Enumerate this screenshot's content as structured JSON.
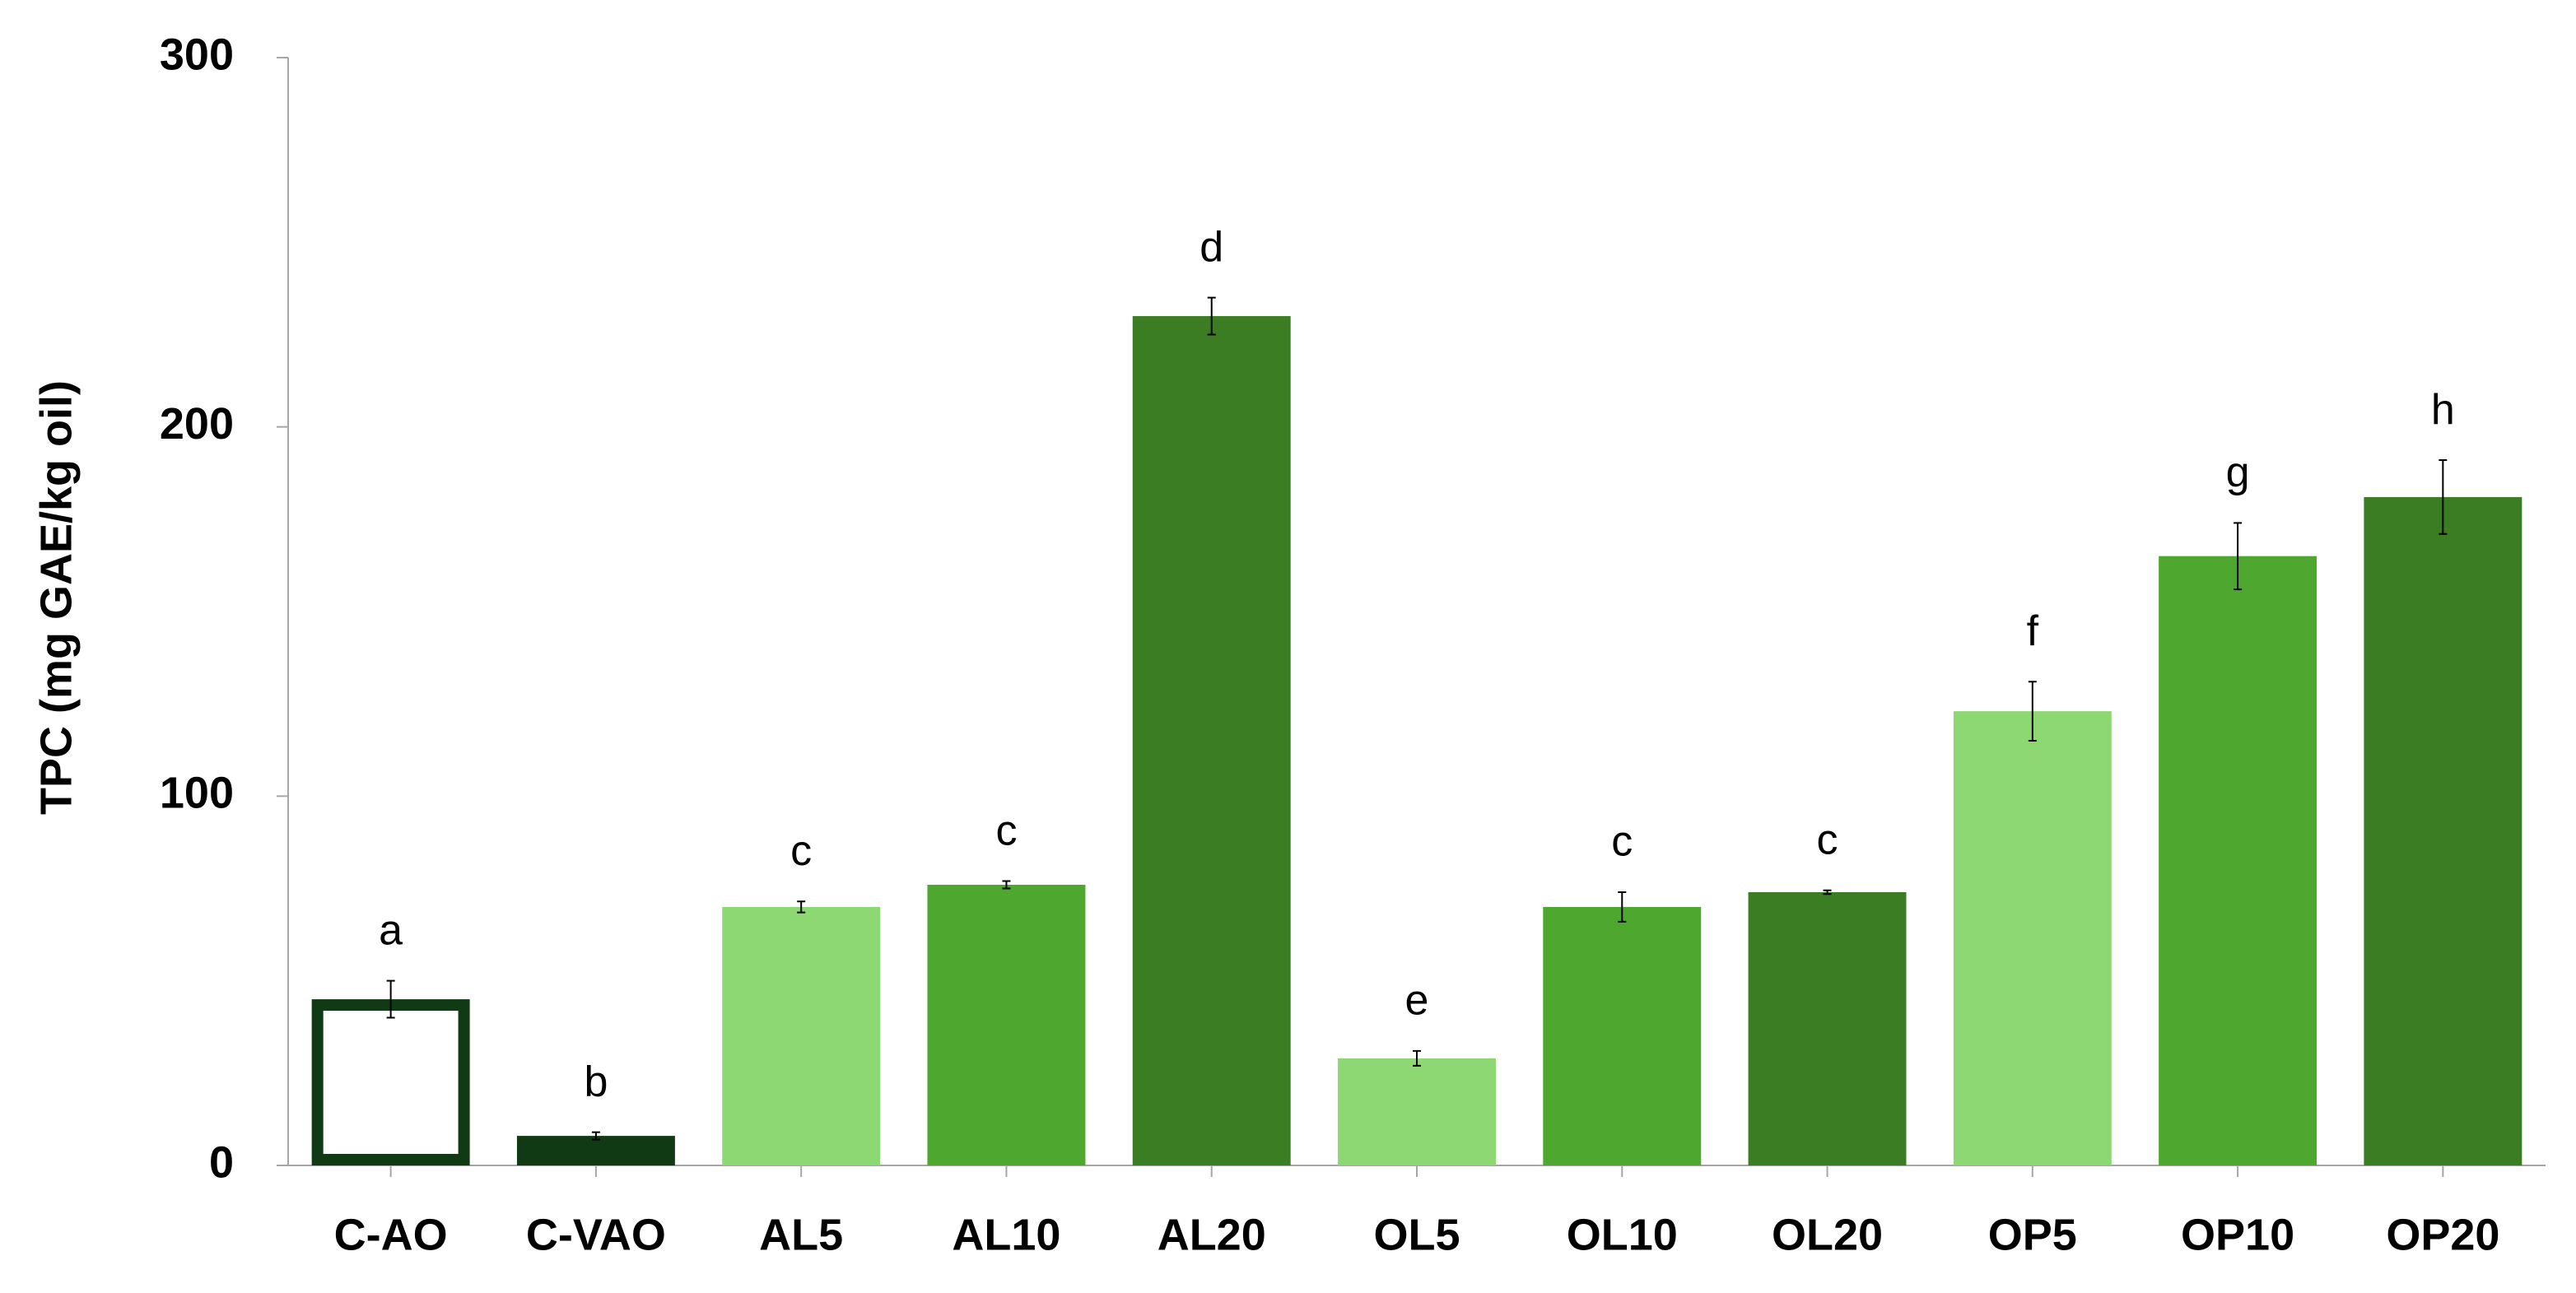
{
  "chart_data": {
    "type": "bar",
    "y_label": "TPC (mg GAE/kg oil)",
    "categories": [
      "C-AO",
      "C-VAO",
      "AL5",
      "AL10",
      "AL20",
      "OL5",
      "OL10",
      "OL20",
      "OP5",
      "OP10",
      "OP20"
    ],
    "values": [
      45,
      8,
      70,
      76,
      230,
      29,
      70,
      74,
      123,
      165,
      181
    ],
    "errors": [
      5,
      1,
      1.5,
      1,
      5,
      2,
      4,
      0.5,
      8,
      9,
      10
    ],
    "letters": [
      "a",
      "b",
      "c",
      "c",
      "d",
      "e",
      "c",
      "c",
      "f",
      "g",
      "h"
    ],
    "fill_colors": [
      "#ffffff",
      "#0f3a14",
      "#8ed873",
      "#4ea72e",
      "#3b7d23",
      "#8ed873",
      "#4ea72e",
      "#3b7d23",
      "#8ed873",
      "#4ea72e",
      "#3b7d23"
    ],
    "edge_colors": [
      "#0f3a14",
      "#0f3a14",
      "#8ed873",
      "#4ea72e",
      "#3b7d23",
      "#8ed873",
      "#4ea72e",
      "#3b7d23",
      "#8ed873",
      "#4ea72e",
      "#3b7d23"
    ],
    "ylim": [
      0,
      300
    ],
    "yticks": [
      0,
      100,
      200,
      300
    ],
    "grid": false
  }
}
